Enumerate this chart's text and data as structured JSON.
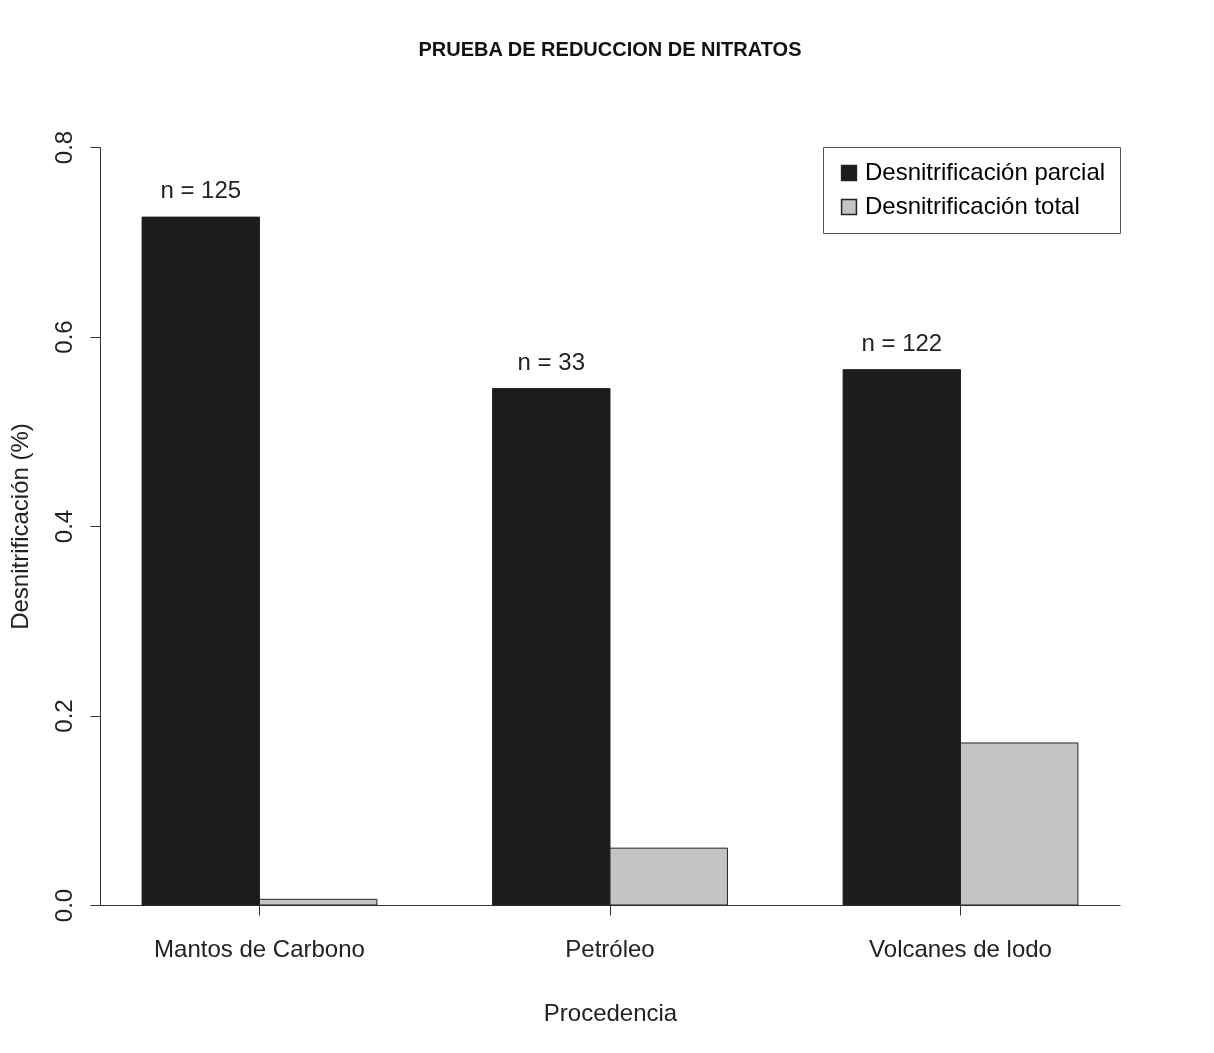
{
  "chart_data": {
    "type": "bar",
    "title": "PRUEBA DE REDUCCION DE NITRATOS",
    "xlabel": "Procedencia",
    "ylabel": "Desnitrificación (%)",
    "categories": [
      "Mantos de Carbono",
      "Petróleo",
      "Volcanes de lodo"
    ],
    "series": [
      {
        "name": "Desnitrificación parcial",
        "color": "#1c1c1c",
        "values": [
          0.726,
          0.545,
          0.565
        ]
      },
      {
        "name": "Desnitrificación total",
        "color": "#c4c4c4",
        "values": [
          0.006,
          0.06,
          0.171
        ]
      }
    ],
    "ylim": [
      0,
      0.8
    ],
    "yticks": [
      {
        "value": 0,
        "label": "0.0"
      },
      {
        "value": 0.2,
        "label": "0.2"
      },
      {
        "value": 0.4,
        "label": "0.4"
      },
      {
        "value": 0.6,
        "label": "0.6"
      },
      {
        "value": 0.8,
        "label": "0.8"
      }
    ],
    "annotations": [
      {
        "text": "n = 125",
        "x": "Mantos de Carbono",
        "y": 0.726
      },
      {
        "text": "n = 33",
        "x": "Petróleo",
        "y": 0.545
      },
      {
        "text": "n = 122",
        "x": "Volcanes de lodo",
        "y": 0.565
      }
    ],
    "legend": "top right",
    "grid": false
  }
}
